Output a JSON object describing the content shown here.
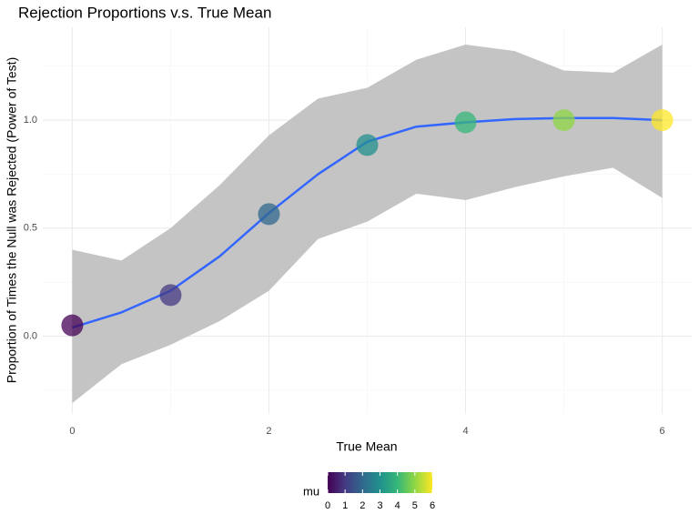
{
  "chart_data": {
    "type": "scatter",
    "title": "Rejection Proportions v.s. True Mean",
    "xlabel": "True Mean",
    "ylabel": "Proportion of Times the Null was Rejected (Power of Test)",
    "x": [
      0,
      1,
      2,
      3,
      4,
      5,
      6
    ],
    "values": [
      0.05,
      0.19,
      0.565,
      0.885,
      0.99,
      1.0,
      1.0
    ],
    "colors": [
      "#440154",
      "#443a83",
      "#31688e",
      "#21908d",
      "#35b779",
      "#8fd744",
      "#fde725"
    ],
    "smooth": {
      "x": [
        0,
        0.5,
        1,
        1.5,
        2,
        2.5,
        3,
        3.5,
        4,
        4.5,
        5,
        5.5,
        6
      ],
      "values": [
        0.04,
        0.11,
        0.21,
        0.37,
        0.57,
        0.75,
        0.9,
        0.97,
        0.99,
        1.005,
        1.01,
        1.01,
        1.0
      ],
      "upper": [
        0.4,
        0.35,
        0.5,
        0.7,
        0.93,
        1.1,
        1.15,
        1.28,
        1.35,
        1.32,
        1.23,
        1.22,
        1.35
      ],
      "lower": [
        -0.31,
        -0.13,
        -0.04,
        0.07,
        0.21,
        0.45,
        0.53,
        0.66,
        0.63,
        0.69,
        0.74,
        0.78,
        0.64
      ],
      "color": "#3366ff",
      "band_color": "#bebebe"
    },
    "xlim": [
      -0.3,
      6.3
    ],
    "ylim": [
      -0.36,
      1.43
    ],
    "xticks": [
      0,
      2,
      4,
      6
    ],
    "xminor": [
      1,
      3,
      5
    ],
    "yticks": [
      {
        "value": 0,
        "label": "0.0"
      },
      {
        "value": 0.5,
        "label": "0.5"
      },
      {
        "value": 1,
        "label": "1.0"
      }
    ],
    "yminor": [
      -0.25,
      0.25,
      0.75,
      1.25
    ],
    "grid": true,
    "legend": {
      "title": "mu",
      "lim": [
        0,
        6
      ],
      "ticks": [
        0,
        1,
        2,
        3,
        4,
        5,
        6
      ],
      "colors": [
        "#440154",
        "#443a83",
        "#31688e",
        "#21908d",
        "#35b779",
        "#8fd744",
        "#fde725"
      ]
    }
  }
}
